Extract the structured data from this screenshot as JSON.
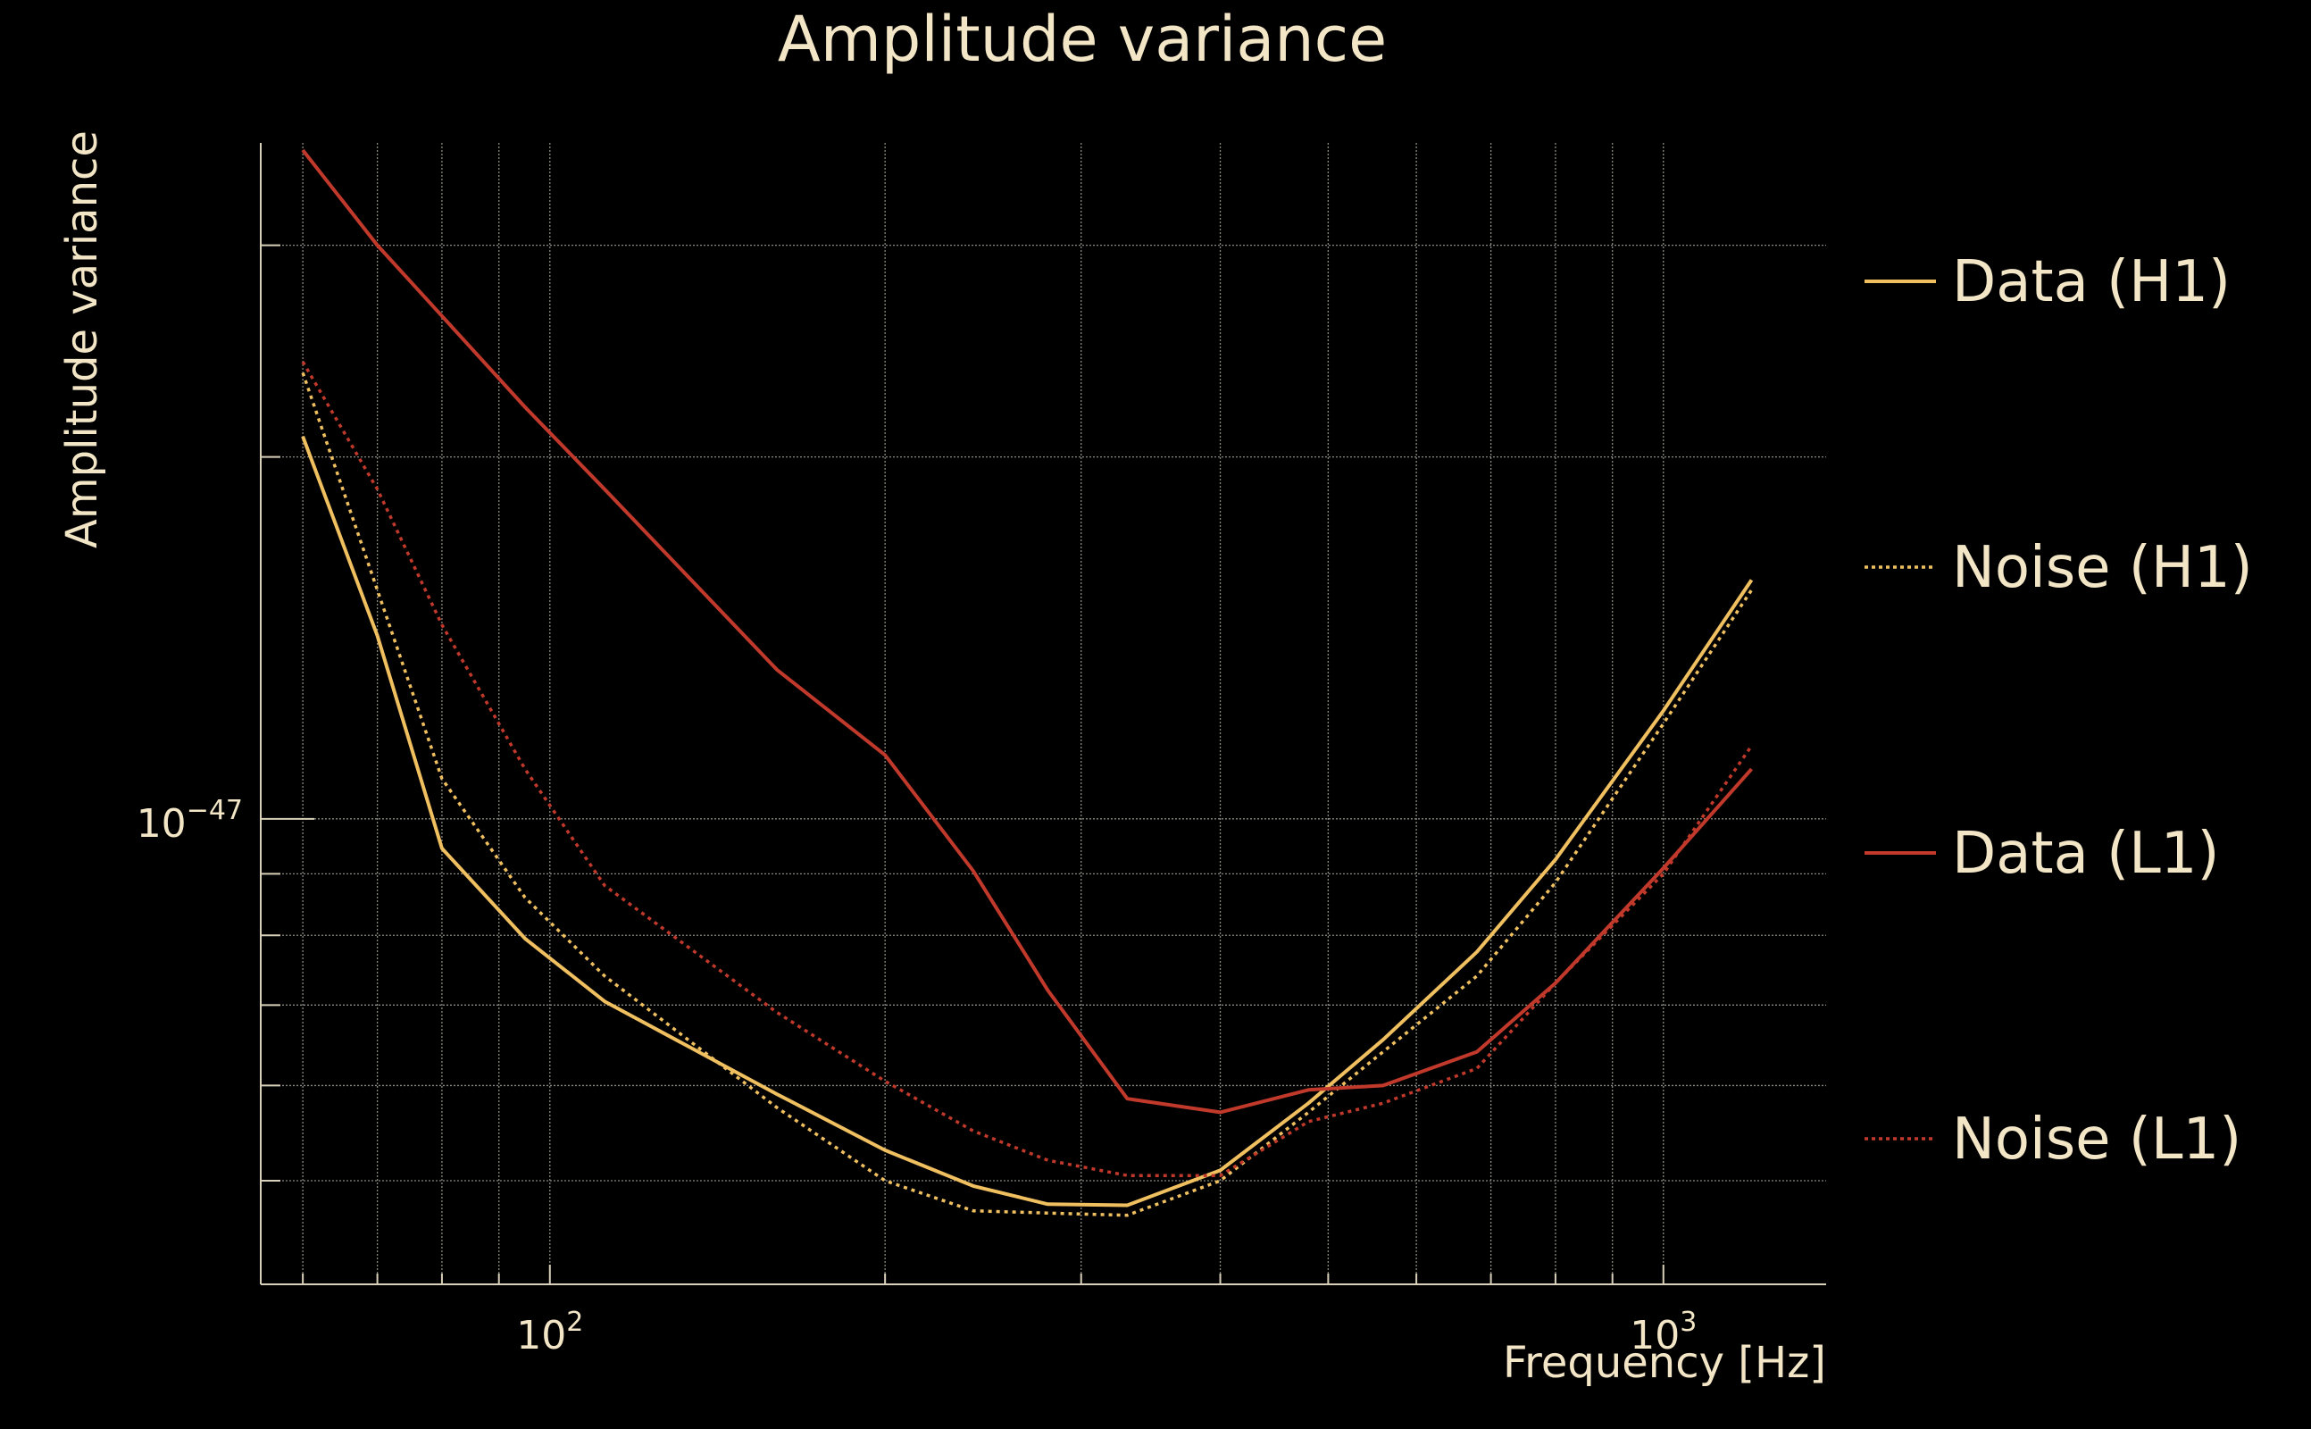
{
  "colors": {
    "background": "#000000",
    "text": "#f3e6c6",
    "grid": "#8a8a80",
    "axis": "#d8d0b8",
    "h1": "#f0c060",
    "l1": "#c0392b"
  },
  "chart_data": {
    "type": "line",
    "title": "Amplitude variance",
    "xlabel": "Frequency [Hz]",
    "ylabel": "Amplitude variance",
    "x_scale": "log",
    "y_scale": "log",
    "xlim": [
      55,
      1400
    ],
    "ylim": [
      4.1e-48,
      3.65e-47
    ],
    "grid": true,
    "legend_position": "right",
    "x_ticks": [
      {
        "value": 100,
        "base": "10",
        "exp": "2"
      },
      {
        "value": 1000,
        "base": "10",
        "exp": "3"
      }
    ],
    "y_ticks": [
      {
        "value": 1e-47,
        "base": "10",
        "exp": "−47"
      }
    ],
    "x_minor_ticks": [
      60,
      70,
      80,
      90,
      200,
      300,
      400,
      500,
      600,
      700,
      800,
      900
    ],
    "y_minor_ticks": [
      5e-48,
      6e-48,
      7e-48,
      8e-48,
      9e-48,
      2e-47,
      3e-47
    ],
    "x": [
      60,
      70,
      80,
      95,
      112,
      160,
      200,
      240,
      280,
      330,
      400,
      480,
      560,
      680,
      800,
      1000,
      1200
    ],
    "series": [
      {
        "name": "Data (H1)",
        "color_key": "h1",
        "dash": "solid",
        "values": [
          2.08e-47,
          1.42e-47,
          9.45e-48,
          7.95e-48,
          7.05e-48,
          5.9e-48,
          5.3e-48,
          4.95e-48,
          4.78e-48,
          4.77e-48,
          5.1e-48,
          5.8e-48,
          6.55e-48,
          7.75e-48,
          9.25e-48,
          1.23e-47,
          1.58e-47
        ]
      },
      {
        "name": "Noise (H1)",
        "color_key": "h1",
        "dash": "dotted",
        "values": [
          2.35e-47,
          1.55e-47,
          1.08e-47,
          8.6e-48,
          7.4e-48,
          5.75e-48,
          5e-48,
          4.72e-48,
          4.7e-48,
          4.68e-48,
          5e-48,
          5.7e-48,
          6.4e-48,
          7.4e-48,
          8.85e-48,
          1.2e-47,
          1.55e-47
        ]
      },
      {
        "name": "Data (L1)",
        "color_key": "l1",
        "dash": "solid",
        "values": [
          3.6e-47,
          3e-47,
          2.62e-47,
          2.2e-47,
          1.88e-47,
          1.33e-47,
          1.13e-47,
          9.05e-48,
          7.2e-48,
          5.85e-48,
          5.7e-48,
          5.95e-48,
          6e-48,
          6.4e-48,
          7.3e-48,
          9.1e-48,
          1.1e-47
        ]
      },
      {
        "name": "Noise (L1)",
        "color_key": "l1",
        "dash": "dotted",
        "values": [
          2.4e-47,
          1.88e-47,
          1.45e-47,
          1.1e-47,
          8.8e-48,
          6.9e-48,
          6.05e-48,
          5.5e-48,
          5.2e-48,
          5.05e-48,
          5.05e-48,
          5.6e-48,
          5.8e-48,
          6.2e-48,
          7.3e-48,
          9e-48,
          1.15e-47
        ]
      }
    ]
  }
}
